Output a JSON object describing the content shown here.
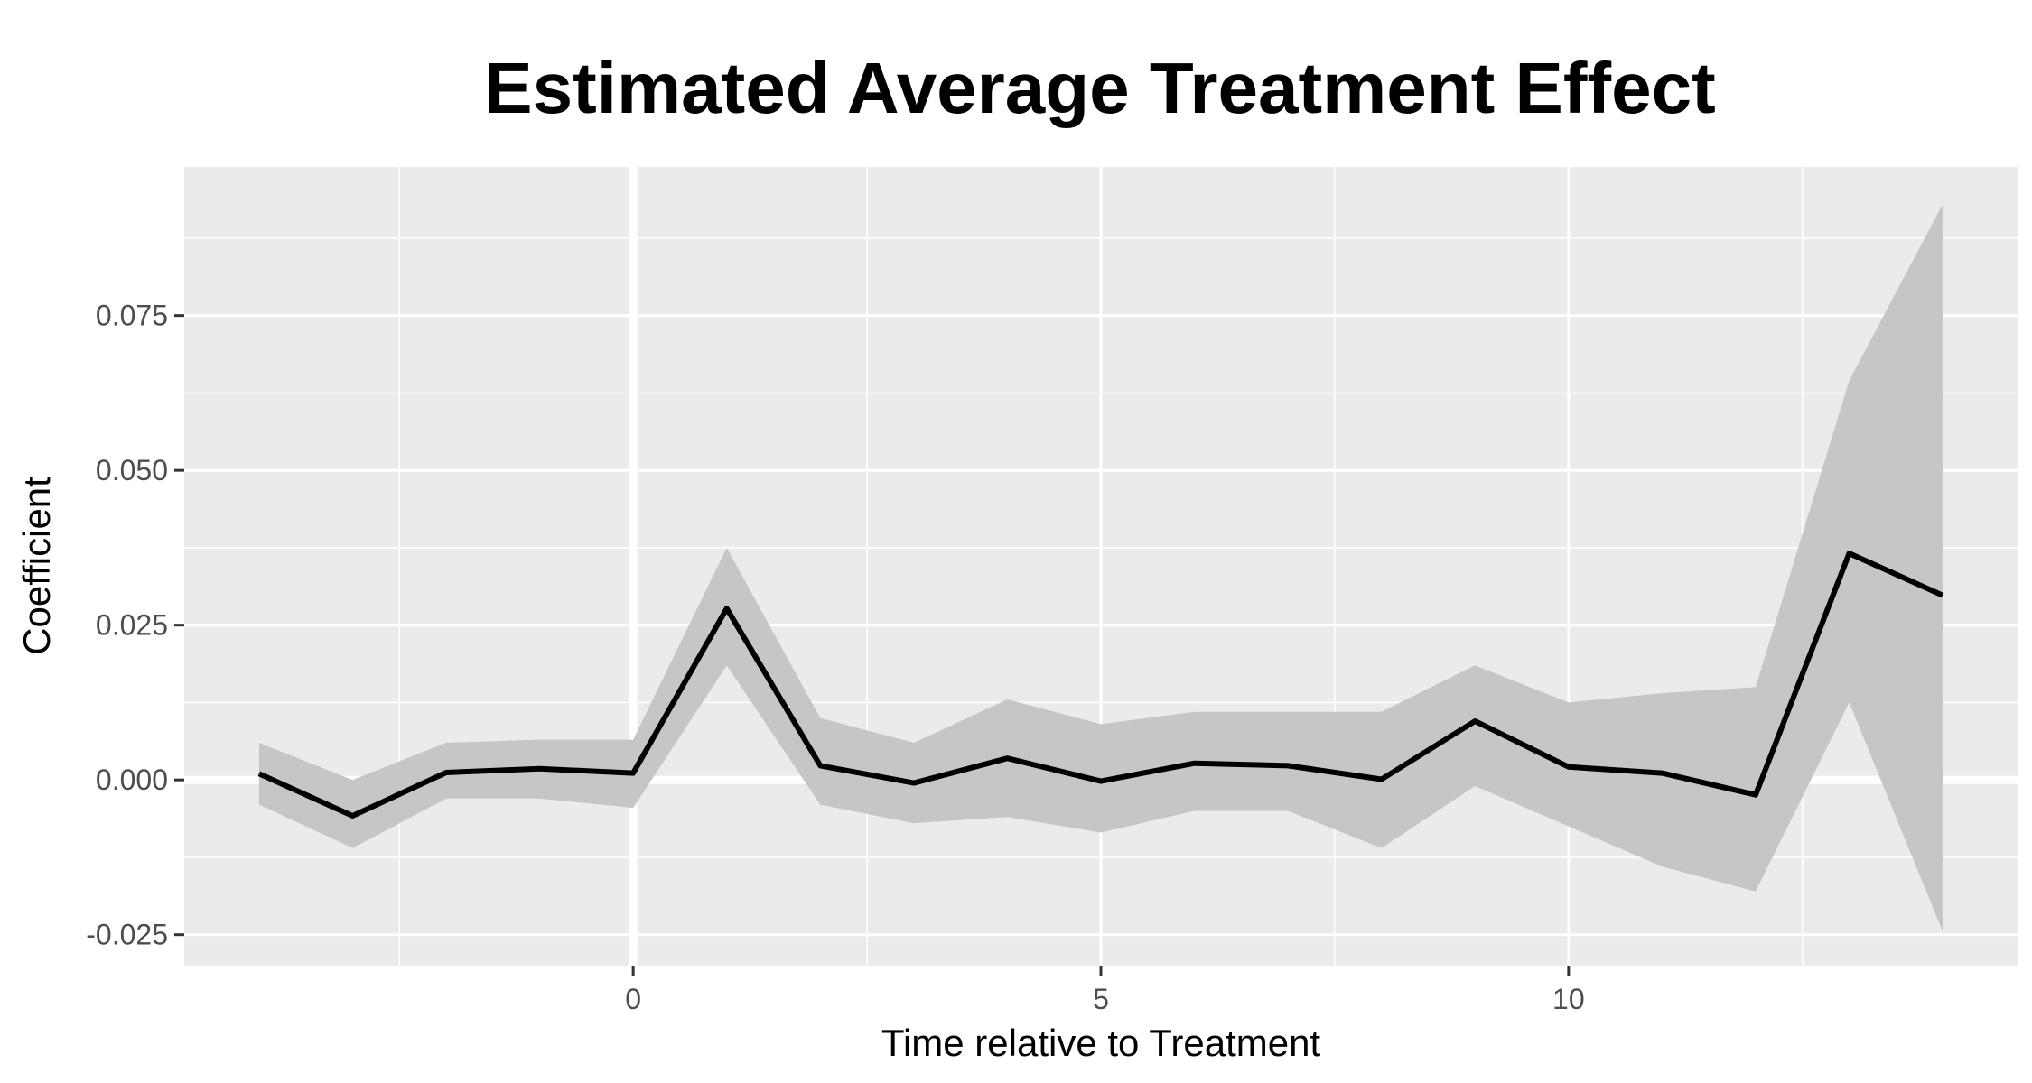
{
  "chart_data": {
    "type": "line",
    "title": "Estimated Average Treatment Effect",
    "xlabel": "Time relative to Treatment",
    "ylabel": "Coefficient",
    "xlim": [
      -4.8,
      14.8
    ],
    "ylim": [
      -0.03,
      0.099
    ],
    "x_ticks": [
      0,
      5,
      10
    ],
    "x_tick_labels": [
      "0",
      "5",
      "10"
    ],
    "y_ticks": [
      -0.025,
      0,
      0.025,
      0.05,
      0.075
    ],
    "y_tick_labels": [
      "-0.025",
      "0.000",
      "0.025",
      "0.050",
      "0.075"
    ],
    "grid": true,
    "reference_lines": {
      "x": 0,
      "y": 0
    },
    "colors": {
      "panel_background": "#ebebeb",
      "grid_line": "#ffffff",
      "ribbon": "#c6c6c6",
      "line": "#000000"
    },
    "series": [
      {
        "x": [
          -4,
          -3,
          -2,
          -1,
          0,
          1,
          2,
          3,
          4,
          5,
          6,
          7,
          8,
          9,
          10,
          11,
          12,
          13,
          14
        ],
        "values": [
          0.001,
          -0.0058,
          0.0012,
          0.0018,
          0.0011,
          0.0277,
          0.0023,
          -0.0005,
          0.0035,
          -0.0002,
          0.0027,
          0.0023,
          0.0001,
          0.0095,
          0.0021,
          0.0011,
          -0.0024,
          0.0366,
          0.0298
        ],
        "lower": [
          -0.004,
          -0.011,
          -0.003,
          -0.003,
          -0.0045,
          0.0185,
          -0.004,
          -0.007,
          -0.006,
          -0.0085,
          -0.005,
          -0.005,
          -0.011,
          -0.001,
          -0.0075,
          -0.014,
          -0.018,
          0.0125,
          -0.0245
        ],
        "upper": [
          0.006,
          0.0,
          0.006,
          0.0065,
          0.0065,
          0.0375,
          0.01,
          0.006,
          0.013,
          0.009,
          0.011,
          0.011,
          0.011,
          0.0185,
          0.0125,
          0.014,
          0.015,
          0.0645,
          0.093
        ]
      }
    ]
  }
}
